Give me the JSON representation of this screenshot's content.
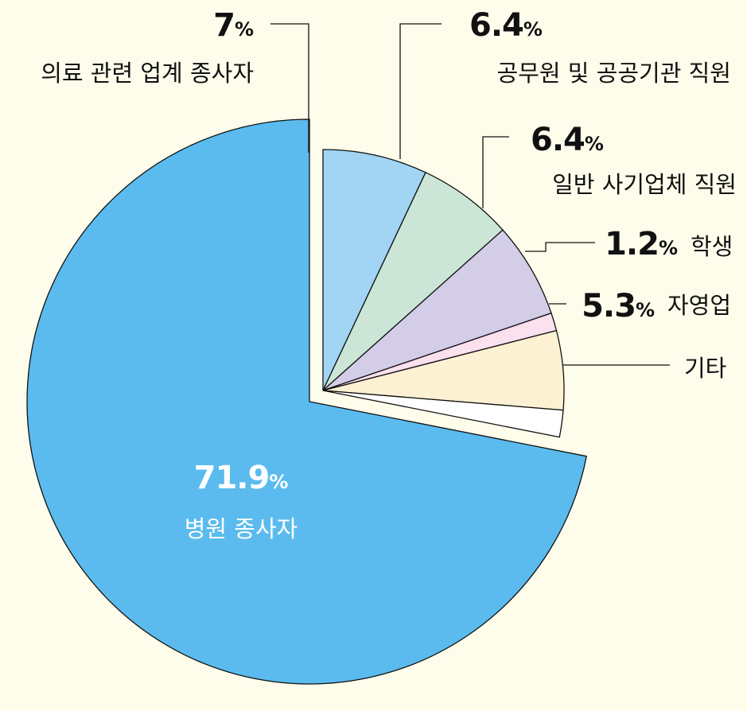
{
  "chart_data": {
    "type": "pie",
    "title": "",
    "slices": [
      {
        "label": "병원 종사자",
        "value": 71.9,
        "value_text": "71.9",
        "unit": "%",
        "color": "#5bbbee",
        "exploded": true
      },
      {
        "label": "의료 관련 업계 종사자",
        "value": 7,
        "value_text": "7",
        "unit": "%",
        "color": "#a2d4f4"
      },
      {
        "label": "공무원 및 공공기관 직원",
        "value": 6.4,
        "value_text": "6.4",
        "unit": "%",
        "color": "#cbe5d6"
      },
      {
        "label": "일반 사기업체 직원",
        "value": 6.4,
        "value_text": "6.4",
        "unit": "%",
        "color": "#d3cde8"
      },
      {
        "label": "학생",
        "value": 1.2,
        "value_text": "1.2",
        "unit": "%",
        "color": "#fbe0ee"
      },
      {
        "label": "자영업",
        "value": 5.3,
        "value_text": "5.3",
        "unit": "%",
        "color": "#fdf1d3"
      },
      {
        "label": "기타",
        "value": 1.8,
        "value_text": "",
        "unit": "",
        "color": "#ffffff"
      }
    ],
    "legend": "none"
  }
}
